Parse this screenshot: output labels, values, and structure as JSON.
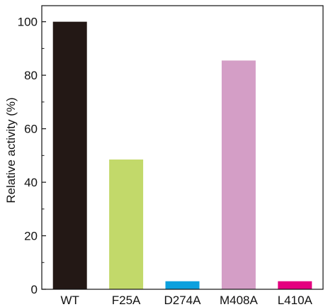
{
  "chart_data": {
    "type": "bar",
    "title": "",
    "xlabel": "",
    "ylabel": "Relative activity (%)",
    "categories": [
      "WT",
      "F25A",
      "D274A",
      "M408A",
      "L410A"
    ],
    "values": [
      100,
      48.5,
      3,
      85.5,
      3
    ],
    "colors": [
      "#231815",
      "#c2d96a",
      "#0ca0de",
      "#d49ec6",
      "#e4007f"
    ],
    "ylim": [
      0,
      106
    ],
    "yticks": [
      0,
      20,
      40,
      60,
      80,
      100
    ],
    "grid": false,
    "legend": "none"
  }
}
